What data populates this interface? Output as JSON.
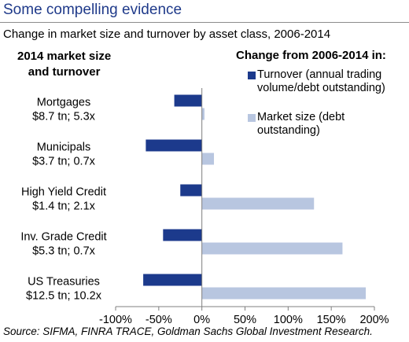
{
  "header": {
    "title": "Some compelling evidence",
    "subtitle": "Change in market size and turnover by asset class, 2006-2014",
    "left_heading_line1": "2014 market size",
    "left_heading_line2": "and turnover",
    "right_heading": "Change from 2006-2014 in:"
  },
  "source": "Source: SIFMA, FINRA TRACE, Goldman Sachs Global Investment Research.",
  "colors": {
    "turnover": "#1c3a8c",
    "market_size": "#b8c6e0",
    "title": "#1f3a8a"
  },
  "chart_data": {
    "type": "bar",
    "orientation": "horizontal",
    "categories": [
      {
        "name": "Mortgages",
        "detail": "$8.7 tn; 5.3x"
      },
      {
        "name": "Municipals",
        "detail": "$3.7 tn; 0.7x"
      },
      {
        "name": "High Yield Credit",
        "detail": "$1.4 tn; 2.1x"
      },
      {
        "name": "Inv. Grade Credit",
        "detail": "$5.3 tn; 0.7x"
      },
      {
        "name": "US Treasuries",
        "detail": "$12.5 tn; 10.2x"
      }
    ],
    "series": [
      {
        "name": "Turnover (annual trading volume/debt outstanding)",
        "values": [
          -32,
          -65,
          -25,
          -45,
          -68
        ]
      },
      {
        "name": "Market size (debt outstanding)",
        "values": [
          3,
          14,
          130,
          163,
          190
        ]
      }
    ],
    "xlim": [
      -100,
      200
    ],
    "xticks": [
      "-100%",
      "-50%",
      "0%",
      "50%",
      "100%",
      "150%",
      "200%"
    ],
    "grid": false,
    "legend_position": "top-right"
  }
}
